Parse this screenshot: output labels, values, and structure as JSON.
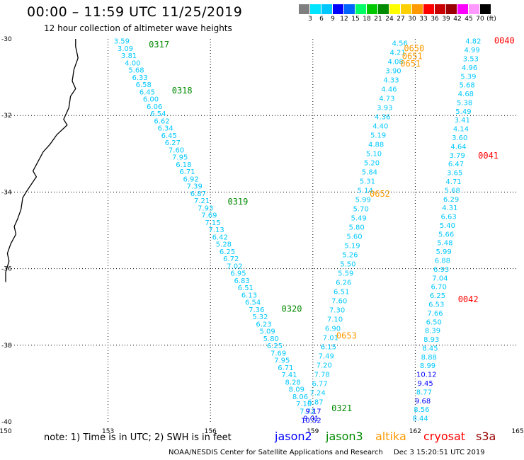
{
  "header": {
    "title": "00:00 – 11:59 UTC 11/25/2019",
    "subtitle": "12 hour collection of altimeter wave heights"
  },
  "color_scale": {
    "colors": [
      "#7f7f7f",
      "#00e4ff",
      "#00c8ff",
      "#0000ff",
      "#0064ff",
      "#00ff66",
      "#00c800",
      "#008a00",
      "#ffff00",
      "#ffd000",
      "#ff9a00",
      "#ff0000",
      "#c80000",
      "#9a0000",
      "#ff00ff",
      "#ff99ff",
      "#000000"
    ],
    "labels": [
      "3",
      "6",
      "9",
      "12",
      "15",
      "18",
      "21",
      "24",
      "27",
      "30",
      "33",
      "36",
      "39",
      "42",
      "45",
      "70",
      "(ft)"
    ]
  },
  "axes": {
    "lat_labels": [
      "-30",
      "-32",
      "-34",
      "-36",
      "-38",
      "-40"
    ],
    "lon_labels": [
      "150",
      "153",
      "156",
      "159",
      "162",
      "165"
    ]
  },
  "chart_data": {
    "type": "scatter",
    "x_unit": "longitude (deg E)",
    "y_unit": "latitude (deg)",
    "xlim": [
      150,
      165
    ],
    "ylim": [
      -40,
      -30
    ],
    "tracks": [
      {
        "satellite": "jason3",
        "values": [
          "3.59",
          "3.09",
          "3.81",
          "4.00",
          "5.68",
          "6.33",
          "6.58",
          "6.45",
          "6.00",
          "6.06",
          "6.54",
          "6.62",
          "6.34",
          "6.45",
          "6.27",
          "7.60",
          "7.95",
          "6.18",
          "6.71",
          "6.92",
          "7.39",
          "6.87",
          "7.21",
          "7.93",
          "7.69",
          "7.15",
          "7.13",
          "6.42",
          "5.28",
          "6.25",
          "6.72",
          "7.02",
          "6.95",
          "6.83",
          "6.51",
          "6.13",
          "6.54",
          "7.36",
          "5.32",
          "6.23",
          "5.09",
          "5.80",
          "6.25",
          "7.69",
          "7.95",
          "6.71",
          "7.41",
          "8.28",
          "8.09",
          "8.06",
          "7.10",
          "7.72",
          "9.01"
        ],
        "times": [
          {
            "label": "0317",
            "lat": -30.15
          },
          {
            "label": "0318",
            "lat": -31.35
          },
          {
            "label": "0319",
            "lat": -34.25
          },
          {
            "label": "0320",
            "lat": -37.05
          },
          {
            "label": "0321",
            "lat": -39.65
          }
        ]
      },
      {
        "satellite": "altika",
        "values": [
          "4.56",
          "4.21",
          "4.08",
          "3.90",
          "4.33",
          "4.46",
          "4.73",
          "3.93",
          "4.36",
          "4.40",
          "5.19",
          "4.88",
          "5.10",
          "5.20",
          "5.84",
          "5.31",
          "5.14",
          "5.99",
          "5.70",
          "5.49",
          "5.80",
          "5.60",
          "5.19",
          "5.26",
          "5.50",
          "5.59",
          "6.26",
          "6.51",
          "7.60",
          "7.30",
          "7.10",
          "6.90",
          "7.01",
          "6.15",
          "7.49",
          "7.20",
          "7.78",
          "6.77",
          "7.24",
          "6.87",
          "9.17",
          "10.52"
        ],
        "times": [
          {
            "label": "0650",
            "lat": -30.25
          },
          {
            "label": "0651",
            "lat": -30.45
          },
          {
            "label": "0651",
            "lat": -30.65
          },
          {
            "label": "0652",
            "lat": -34.05
          },
          {
            "label": "0653",
            "lat": -37.75
          }
        ]
      },
      {
        "satellite": "cryosat",
        "values": [
          "4.82",
          "4.99",
          "3.53",
          "4.96",
          "5.39",
          "5.68",
          "4.68",
          "5.38",
          "5.49",
          "3.41",
          "4.14",
          "3.60",
          "4.64",
          "3.79",
          "6.47",
          "3.65",
          "4.71",
          "5.68",
          "6.29",
          "4.31",
          "6.63",
          "5.40",
          "5.66",
          "5.48",
          "5.99",
          "6.88",
          "6.93",
          "7.04",
          "6.70",
          "6.25",
          "6.53",
          "7.66",
          "6.50",
          "8.39",
          "8.93",
          "8.45",
          "8.88",
          "8.99",
          "10.12",
          "9.45",
          "8.77",
          "9.68",
          "8.56",
          "8.44"
        ],
        "times": [
          {
            "label": "0040",
            "lat": -30.05
          },
          {
            "label": "0041",
            "lat": -33.05
          },
          {
            "label": "0042",
            "lat": -36.8
          }
        ]
      }
    ]
  },
  "note": "note: 1) Time is in UTC; 2) SWH is in feet",
  "legend": [
    {
      "label": "jason2",
      "color": "#0000ff"
    },
    {
      "label": "jason3",
      "color": "#008a00"
    },
    {
      "label": "altika",
      "color": "#ff9a00"
    },
    {
      "label": "cryosat",
      "color": "#ff0000"
    },
    {
      "label": "s3a",
      "color": "#9a0000"
    }
  ],
  "footer": "NOAA/NESDIS Center for Satellite Applications and Research",
  "footer_date": "Dec  3 15:20:51 UTC 2019"
}
